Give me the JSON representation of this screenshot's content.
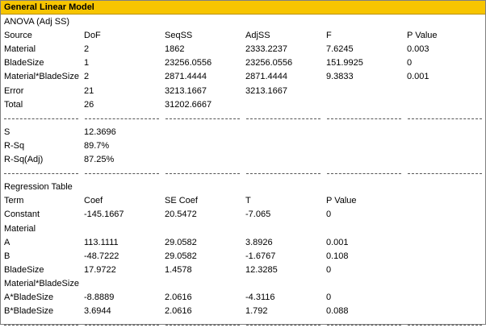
{
  "window": {
    "title": "General Linear Model"
  },
  "anova": {
    "heading": "ANOVA (Adj SS)",
    "headers": [
      "Source",
      "DoF",
      "SeqSS",
      "AdjSS",
      "F",
      "P Value"
    ],
    "rows": [
      [
        "Material",
        "2",
        "1862",
        "2333.2237",
        "7.6245",
        "0.003"
      ],
      [
        "BladeSize",
        "1",
        "23256.0556",
        "23256.0556",
        "151.9925",
        "0"
      ],
      [
        "Material*BladeSize",
        "2",
        "2871.4444",
        "2871.4444",
        "9.3833",
        "0.001"
      ],
      [
        "Error",
        "21",
        "3213.1667",
        "3213.1667",
        "",
        ""
      ],
      [
        "Total",
        "26",
        "31202.6667",
        "",
        "",
        ""
      ]
    ]
  },
  "fit": {
    "rows": [
      [
        "S",
        "12.3696"
      ],
      [
        "R-Sq",
        "89.7%"
      ],
      [
        "R-Sq(Adj)",
        "87.25%"
      ]
    ]
  },
  "regression": {
    "heading": "Regression Table",
    "headers": [
      "Term",
      "Coef",
      "SE Coef",
      "T",
      "P Value"
    ],
    "rows": [
      [
        "Constant",
        "-145.1667",
        "20.5472",
        "-7.065",
        "0"
      ],
      [
        "Material",
        "",
        "",
        "",
        ""
      ],
      [
        "A",
        "113.1111",
        "29.0582",
        "3.8926",
        "0.001"
      ],
      [
        "B",
        "-48.7222",
        "29.0582",
        "-1.6767",
        "0.108"
      ],
      [
        "BladeSize",
        "17.9722",
        "1.4578",
        "12.3285",
        "0"
      ],
      [
        "Material*BladeSize",
        "",
        "",
        "",
        ""
      ],
      [
        "A*BladeSize",
        "-8.8889",
        "2.0616",
        "-4.3116",
        "0"
      ],
      [
        "B*BladeSize",
        "3.6944",
        "2.0616",
        "1.792",
        "0.088"
      ]
    ]
  },
  "colors": {
    "titlebar": "#f7c500",
    "text": "#000000",
    "background": "#ffffff"
  }
}
